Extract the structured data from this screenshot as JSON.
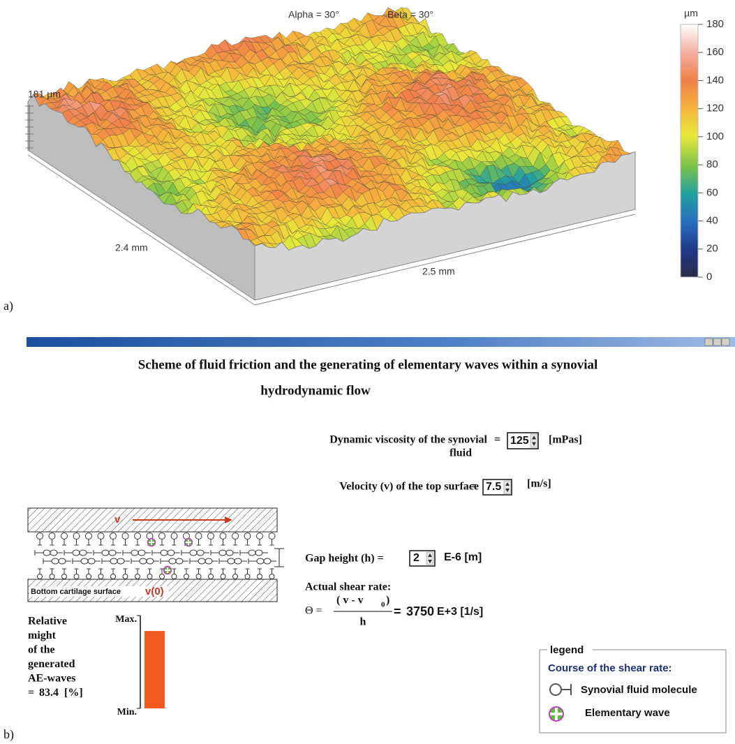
{
  "panel_a": {
    "label": "a)",
    "angles": [
      "Alpha = 30°",
      "Beta = 30°"
    ],
    "height_label": "181 µm",
    "x_length": "2.4 mm",
    "y_length": "2.5 mm",
    "colorbar": {
      "unit": "µm",
      "lim": [
        0,
        180
      ],
      "ticks": [
        0,
        20,
        40,
        60,
        80,
        100,
        120,
        140,
        160,
        180
      ]
    }
  },
  "panel_b": {
    "label": "b)",
    "title_lines": [
      "Scheme of fluid friction and the generating of elementary waves within a synovial",
      "hydrodynamic flow"
    ],
    "viscosity": {
      "label_lines": [
        "Dynamic viscosity of the synovial",
        "fluid"
      ],
      "sign": "=",
      "value": 125,
      "unit": "[mPas]"
    },
    "velocity": {
      "label": "Velocity (v) of the top surface",
      "sign": "=",
      "value": 7.5,
      "unit": "[m/s]"
    },
    "gap": {
      "label": "Gap height (h) =",
      "value": 2,
      "unit": "E-6 [m]"
    },
    "shear": {
      "label": "Actual shear rate:",
      "symbol": "Θ =",
      "numerator": "( v - v",
      "sub": "0",
      "num_close": ")",
      "denominator": "h",
      "sign": "=",
      "value": 3750,
      "unit": "E+3 [1/s]"
    },
    "scheme": {
      "top_velocity": "v",
      "bottom_label": "Bottom cartilage surface",
      "bottom_velocity": "v(0)"
    },
    "might": {
      "label_lines": [
        "Relative",
        "might",
        "of the",
        "generated",
        "AE-waves"
      ],
      "sign": "=",
      "value": 83.4,
      "unit": "[%]",
      "ticks": [
        {
          "value": 100,
          "label": "Max."
        },
        {
          "value": 0,
          "label": "Min."
        }
      ],
      "color": "#f25a1f"
    },
    "legend": {
      "title": "legend",
      "heading": "Course of the shear rate:",
      "items": [
        "Synovial fluid molecule",
        "Elementary wave"
      ]
    }
  }
}
